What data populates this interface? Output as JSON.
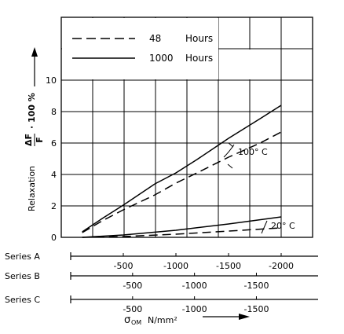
{
  "chart_data": {
    "type": "line",
    "ylabel": "Relaxation",
    "ylabel_formula": {
      "numerator": "ΔF",
      "denominator": "F",
      "suffix": "· 100   %"
    },
    "xlabel": {
      "symbol": "σ",
      "subscript": "OM",
      "unit": "N/mm²"
    },
    "ylim": [
      0,
      14
    ],
    "yticks": [
      "0",
      "2",
      "4",
      "6",
      "8",
      "10"
    ],
    "x_axis_values": [
      0,
      2000
    ],
    "legend": {
      "position": "top-left",
      "entries": [
        {
          "label": "48",
          "unit": "Hours",
          "style": "dashed"
        },
        {
          "label": "1000",
          "unit": "Hours",
          "style": "solid"
        }
      ]
    },
    "scales": [
      {
        "name": "Series A",
        "ticks": [
          "-500",
          "-1000",
          "-1500",
          "-2000"
        ],
        "values": [
          500,
          1000,
          1500,
          2000
        ]
      },
      {
        "name": "Series B",
        "ticks": [
          "-500",
          "-1000",
          "-1500"
        ],
        "values": [
          500,
          1000,
          1500
        ]
      },
      {
        "name": "Series C",
        "ticks": [
          "-500",
          "-1000",
          "-1500"
        ],
        "values": [
          500,
          1000,
          1500
        ]
      }
    ],
    "annotations": [
      "100° C",
      "20° C"
    ],
    "series": [
      {
        "group": "100° C",
        "duration": "1000 Hours",
        "style": "solid",
        "points": [
          [
            110,
            0.35
          ],
          [
            300,
            1.2
          ],
          [
            500,
            2.05
          ],
          [
            800,
            3.4
          ],
          [
            1000,
            4.1
          ],
          [
            1200,
            4.95
          ],
          [
            1500,
            6.3
          ],
          [
            1800,
            7.55
          ],
          [
            2000,
            8.4
          ]
        ]
      },
      {
        "group": "100° C",
        "duration": "48 Hours",
        "style": "dashed",
        "points": [
          [
            110,
            0.3
          ],
          [
            300,
            1.05
          ],
          [
            500,
            1.75
          ],
          [
            800,
            2.7
          ],
          [
            1000,
            3.45
          ],
          [
            1200,
            4.1
          ],
          [
            1500,
            5.1
          ],
          [
            1800,
            6.0
          ],
          [
            2000,
            6.7
          ]
        ]
      },
      {
        "group": "20° C",
        "duration": "1000 Hours",
        "style": "solid",
        "points": [
          [
            110,
            0.0
          ],
          [
            500,
            0.15
          ],
          [
            1000,
            0.45
          ],
          [
            1500,
            0.85
          ],
          [
            2000,
            1.3
          ]
        ]
      },
      {
        "group": "20° C",
        "duration": "48 Hours",
        "style": "dashed",
        "points": [
          [
            110,
            0.0
          ],
          [
            500,
            0.05
          ],
          [
            1000,
            0.2
          ],
          [
            1500,
            0.4
          ],
          [
            2000,
            0.6
          ]
        ]
      }
    ]
  }
}
